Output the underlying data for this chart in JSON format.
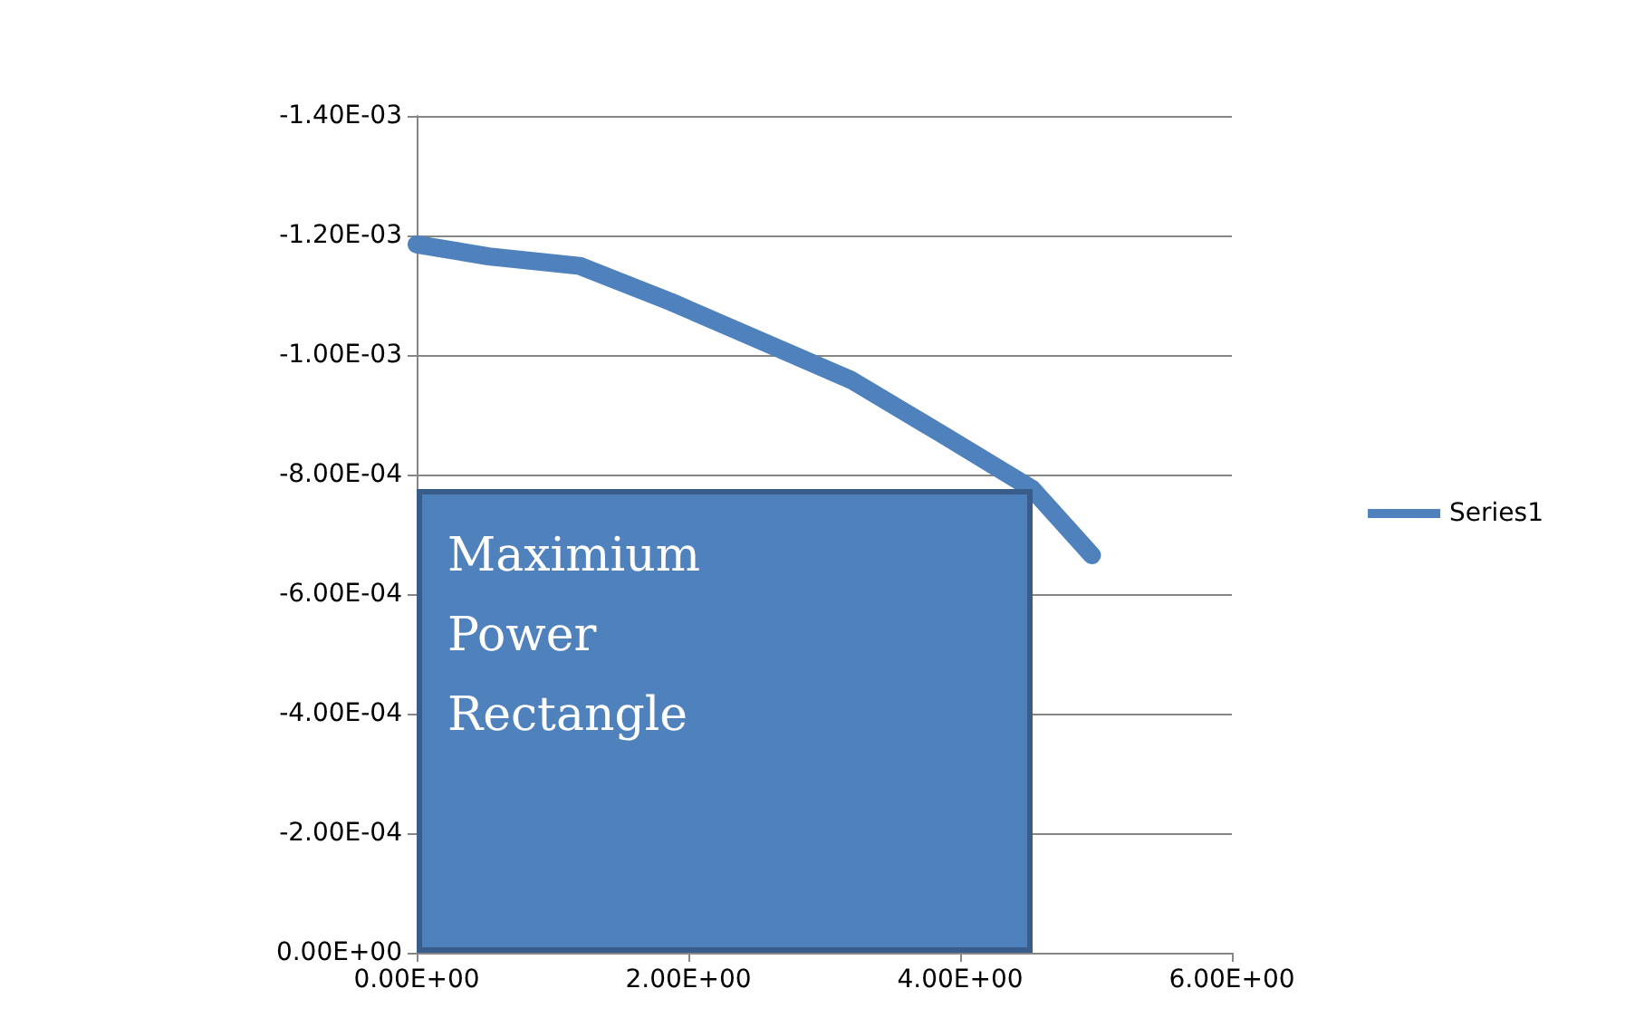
{
  "chart_data": {
    "type": "line",
    "x": [
      0,
      0.53,
      1.2,
      1.87,
      2.53,
      3.2,
      3.87,
      4.53,
      4.97
    ],
    "series": [
      {
        "name": "Series1",
        "color": "#4f81bd",
        "values": [
          -0.001185,
          -0.001165,
          -0.001149,
          -0.001089,
          -0.001024,
          -0.000958,
          -0.000867,
          -0.000776,
          -0.000665
        ]
      }
    ],
    "xlim": [
      0,
      6
    ],
    "xticks": [
      {
        "value": 0,
        "label": "0.00E+00"
      },
      {
        "value": 2,
        "label": "2.00E+00"
      },
      {
        "value": 4,
        "label": "4.00E+00"
      },
      {
        "value": 6,
        "label": "6.00E+00"
      }
    ],
    "ylim": [
      0,
      -0.0014
    ],
    "yticks": [
      {
        "value": 0,
        "label": "0.00E+00"
      },
      {
        "value": -0.0002,
        "label": "-2.00E-04"
      },
      {
        "value": -0.0004,
        "label": "-4.00E-04"
      },
      {
        "value": -0.0006,
        "label": "-6.00E-04"
      },
      {
        "value": -0.0008,
        "label": "-8.00E-04"
      },
      {
        "value": -0.001,
        "label": "-1.00E-03"
      },
      {
        "value": -0.0012,
        "label": "-1.20E-03"
      },
      {
        "value": -0.0014,
        "label": "-1.40E-03"
      }
    ],
    "annotations": [
      "Maximium Power Rectangle"
    ],
    "grid": "y",
    "legend": "right",
    "line_style": "solid"
  }
}
